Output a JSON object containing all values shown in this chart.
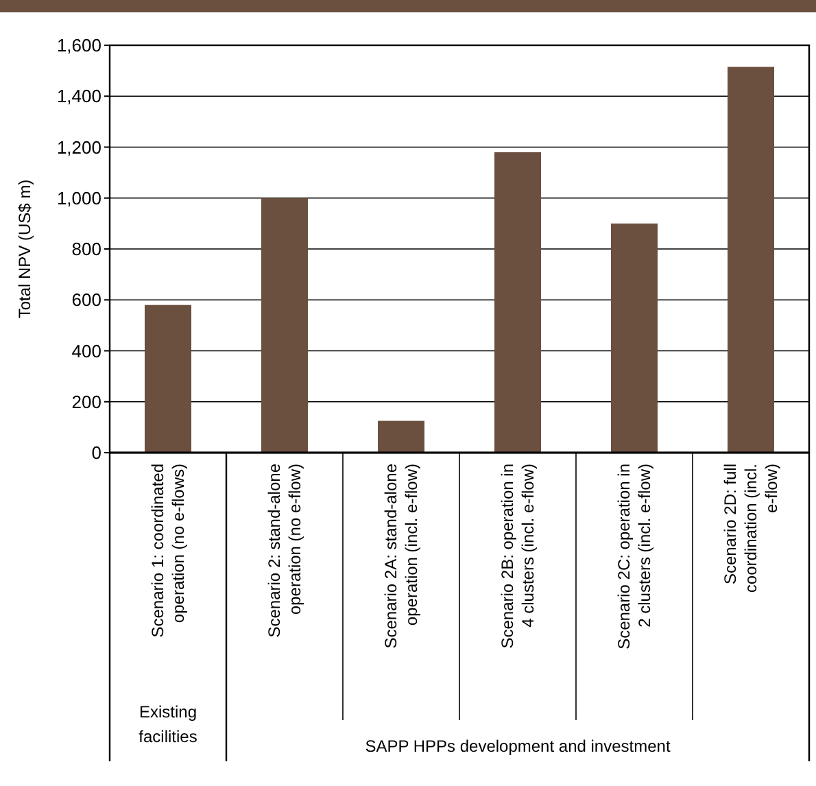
{
  "chart_data": {
    "type": "bar",
    "ylabel": "Total NPV (US$ m)",
    "categories": [
      "Scenario 1: coordinated operation (no e-flows)",
      "Scenario 2: stand-alone operation (no e-flow)",
      "Scenario 2A: stand-alone operation (incl. e-flow)",
      "Scenario 2B: operation in 4 clusters (incl. e-flow)",
      "Scenario 2C: operation in 2 clusters (incl. e-flow)",
      "Scenario 2D: full coordination (incl. e-flow)"
    ],
    "values": [
      580,
      1000,
      125,
      1180,
      900,
      1515
    ],
    "color": "#6b4f3f",
    "ylim": [
      0,
      1600
    ],
    "yticks": [
      0,
      200,
      400,
      600,
      800,
      {
        "value": 1000,
        "label": "1,000"
      },
      {
        "value": 1200,
        "label": "1,200"
      },
      {
        "value": 1400,
        "label": "1,400"
      },
      {
        "value": 1600,
        "label": "1,600"
      }
    ],
    "grid": "y",
    "annotations": [
      "Existing facilities",
      "SAPP HPPs development and investment"
    ]
  }
}
